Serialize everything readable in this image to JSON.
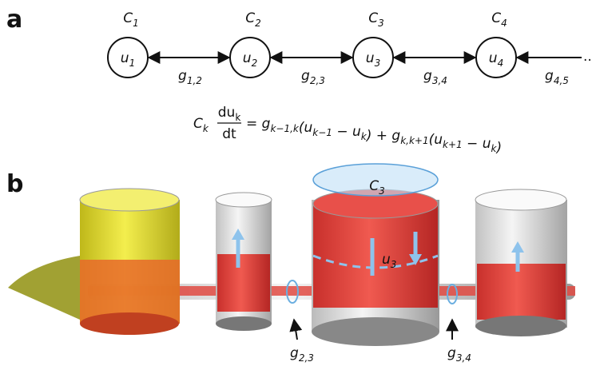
{
  "panel_a": {
    "label": "a",
    "nodes": [
      {
        "cap": {
          "base": "C",
          "sub": "1"
        },
        "var": {
          "base": "u",
          "sub": "1"
        }
      },
      {
        "cap": {
          "base": "C",
          "sub": "2"
        },
        "var": {
          "base": "u",
          "sub": "2"
        }
      },
      {
        "cap": {
          "base": "C",
          "sub": "3"
        },
        "var": {
          "base": "u",
          "sub": "3"
        }
      },
      {
        "cap": {
          "base": "C",
          "sub": "4"
        },
        "var": {
          "base": "u",
          "sub": "4"
        }
      }
    ],
    "edges": [
      {
        "base": "g",
        "sub": "1,2"
      },
      {
        "base": "g",
        "sub": "2,3"
      },
      {
        "base": "g",
        "sub": "3,4"
      },
      {
        "base": "g",
        "sub": "4,5"
      }
    ],
    "ellipsis": "..",
    "equation": {
      "lhs": {
        "base": "C",
        "sub": "k"
      },
      "fraction": {
        "num": {
          "base": "du",
          "sub": "k"
        },
        "den": "dt"
      },
      "rhs": [
        {
          "base": "= g",
          "sub": "k−1,k"
        },
        {
          "base": "(u",
          "sub": "k−1"
        },
        {
          "base": " − u",
          "sub": "k"
        },
        {
          "base": ") + g",
          "sub": "k,k+1"
        },
        {
          "base": "(u",
          "sub": "k+1"
        },
        {
          "base": " − u",
          "sub": "k"
        },
        {
          "base": ")"
        }
      ]
    }
  },
  "panel_b": {
    "label": "b",
    "capacitance": {
      "base": "C",
      "sub": "3"
    },
    "level": {
      "base": "u",
      "sub": "3"
    },
    "conductances": [
      {
        "base": "g",
        "sub": "2,3"
      },
      {
        "base": "g",
        "sub": "3,4"
      }
    ]
  }
}
